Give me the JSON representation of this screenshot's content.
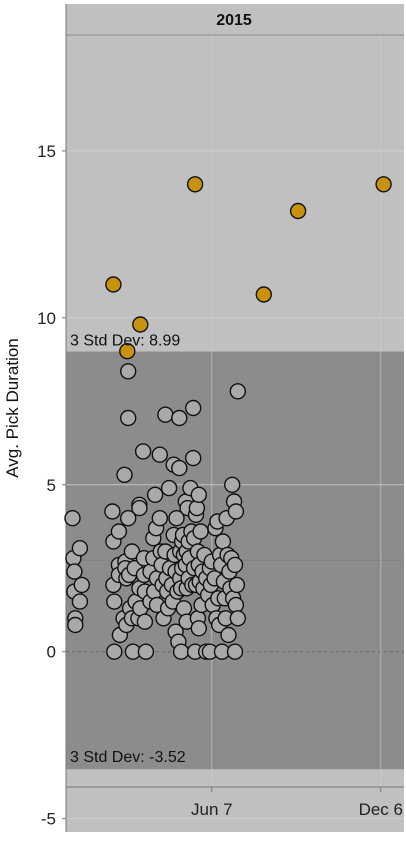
{
  "chart_data": {
    "type": "scatter",
    "title": "2015",
    "ylabel": "Avg. Pick Duration",
    "xlabel": "",
    "ylim": [
      -5.4,
      19.4
    ],
    "xlim": [
      "2015-01-01",
      "2015-12-31"
    ],
    "yticks": [
      -5,
      0,
      5,
      10,
      15
    ],
    "xticks": [
      {
        "date": "2015-06-07",
        "label": "Jun 7"
      },
      {
        "date": "2015-12-06",
        "label": "Dec 6"
      }
    ],
    "grid": true,
    "mean": 2.74,
    "band": {
      "upper": 8.99,
      "lower": -3.52,
      "upper_label": "3 Std Dev: 8.99",
      "lower_label": "3 Std Dev: -3.52"
    },
    "colors": {
      "background": "#c0c0c0",
      "band": "#8c8c8c",
      "normal_point": "#a9a9a9",
      "outlier_point": "#c8920e",
      "point_outline": "#111111",
      "zero_line": "#666666"
    },
    "series": [
      {
        "category": "outlier",
        "points": [
          {
            "x": "2015-02-21",
            "y": 11.0
          },
          {
            "x": "2015-03-08",
            "y": 9.0
          },
          {
            "x": "2015-03-22",
            "y": 9.8
          },
          {
            "x": "2015-05-20",
            "y": 14.0
          },
          {
            "x": "2015-08-02",
            "y": 10.7
          },
          {
            "x": "2015-09-08",
            "y": 13.2
          },
          {
            "x": "2015-12-09",
            "y": 14.0
          }
        ]
      },
      {
        "category": "normal",
        "points": [
          {
            "x": "2015-01-08",
            "y": 4.0
          },
          {
            "x": "2015-01-09",
            "y": 2.8
          },
          {
            "x": "2015-01-10",
            "y": 2.4
          },
          {
            "x": "2015-01-10",
            "y": 1.8
          },
          {
            "x": "2015-01-11",
            "y": 1.0
          },
          {
            "x": "2015-01-11",
            "y": 0.8
          },
          {
            "x": "2015-01-16",
            "y": 3.1
          },
          {
            "x": "2015-01-16",
            "y": 1.5
          },
          {
            "x": "2015-01-18",
            "y": 2.0
          },
          {
            "x": "2015-02-20",
            "y": 4.2
          },
          {
            "x": "2015-02-21",
            "y": 3.3
          },
          {
            "x": "2015-02-21",
            "y": 2.0
          },
          {
            "x": "2015-02-22",
            "y": 1.5
          },
          {
            "x": "2015-02-22",
            "y": 0.0
          },
          {
            "x": "2015-02-27",
            "y": 3.6
          },
          {
            "x": "2015-02-27",
            "y": 2.6
          },
          {
            "x": "2015-02-27",
            "y": 2.3
          },
          {
            "x": "2015-02-28",
            "y": 0.5
          },
          {
            "x": "2015-03-04",
            "y": 1.0
          },
          {
            "x": "2015-03-05",
            "y": 5.3
          },
          {
            "x": "2015-03-06",
            "y": 2.7
          },
          {
            "x": "2015-03-06",
            "y": 2.5
          },
          {
            "x": "2015-03-07",
            "y": 2.2
          },
          {
            "x": "2015-03-07",
            "y": 0.8
          },
          {
            "x": "2015-03-09",
            "y": 8.4
          },
          {
            "x": "2015-03-09",
            "y": 7.0
          },
          {
            "x": "2015-03-09",
            "y": 4.0
          },
          {
            "x": "2015-03-10",
            "y": 2.3
          },
          {
            "x": "2015-03-11",
            "y": 1.3
          },
          {
            "x": "2015-03-13",
            "y": 3.0
          },
          {
            "x": "2015-03-13",
            "y": 1.0
          },
          {
            "x": "2015-03-14",
            "y": 0.0
          },
          {
            "x": "2015-03-16",
            "y": 2.5
          },
          {
            "x": "2015-03-17",
            "y": 1.5
          },
          {
            "x": "2015-03-20",
            "y": 1.0
          },
          {
            "x": "2015-03-21",
            "y": 4.4
          },
          {
            "x": "2015-03-21",
            "y": 4.3
          },
          {
            "x": "2015-03-21",
            "y": 1.9
          },
          {
            "x": "2015-03-22",
            "y": 1.3
          },
          {
            "x": "2015-03-25",
            "y": 6.0
          },
          {
            "x": "2015-03-26",
            "y": 2.8
          },
          {
            "x": "2015-03-26",
            "y": 2.3
          },
          {
            "x": "2015-03-27",
            "y": 1.8
          },
          {
            "x": "2015-03-27",
            "y": 0.9
          },
          {
            "x": "2015-03-28",
            "y": 0.0
          },
          {
            "x": "2015-04-02",
            "y": 2.4
          },
          {
            "x": "2015-04-02",
            "y": 1.5
          },
          {
            "x": "2015-04-05",
            "y": 3.4
          },
          {
            "x": "2015-04-05",
            "y": 2.8
          },
          {
            "x": "2015-04-06",
            "y": 1.8
          },
          {
            "x": "2015-04-07",
            "y": 4.7
          },
          {
            "x": "2015-04-08",
            "y": 3.7
          },
          {
            "x": "2015-04-09",
            "y": 2.2
          },
          {
            "x": "2015-04-09",
            "y": 1.4
          },
          {
            "x": "2015-04-12",
            "y": 5.9
          },
          {
            "x": "2015-04-12",
            "y": 4.0
          },
          {
            "x": "2015-04-13",
            "y": 3.0
          },
          {
            "x": "2015-04-14",
            "y": 2.6
          },
          {
            "x": "2015-04-15",
            "y": 2.0
          },
          {
            "x": "2015-04-16",
            "y": 1.0
          },
          {
            "x": "2015-04-18",
            "y": 7.1
          },
          {
            "x": "2015-04-18",
            "y": 3.0
          },
          {
            "x": "2015-04-19",
            "y": 2.2
          },
          {
            "x": "2015-04-20",
            "y": 1.8
          },
          {
            "x": "2015-04-21",
            "y": 1.3
          },
          {
            "x": "2015-04-22",
            "y": 4.9
          },
          {
            "x": "2015-04-23",
            "y": 2.5
          },
          {
            "x": "2015-04-25",
            "y": 2.0
          },
          {
            "x": "2015-04-26",
            "y": 1.5
          },
          {
            "x": "2015-04-27",
            "y": 5.6
          },
          {
            "x": "2015-04-27",
            "y": 3.5
          },
          {
            "x": "2015-04-28",
            "y": 2.9
          },
          {
            "x": "2015-04-29",
            "y": 2.4
          },
          {
            "x": "2015-04-29",
            "y": 0.6
          },
          {
            "x": "2015-04-30",
            "y": 4.0
          },
          {
            "x": "2015-05-01",
            "y": 1.8
          },
          {
            "x": "2015-05-02",
            "y": 0.3
          },
          {
            "x": "2015-05-03",
            "y": 7.0
          },
          {
            "x": "2015-05-03",
            "y": 5.5
          },
          {
            "x": "2015-05-04",
            "y": 3.0
          },
          {
            "x": "2015-05-04",
            "y": 2.2
          },
          {
            "x": "2015-05-05",
            "y": 1.9
          },
          {
            "x": "2015-05-05",
            "y": 0.0
          },
          {
            "x": "2015-05-06",
            "y": 3.3
          },
          {
            "x": "2015-05-06",
            "y": 2.5
          },
          {
            "x": "2015-05-07",
            "y": 3.5
          },
          {
            "x": "2015-05-08",
            "y": 2.9
          },
          {
            "x": "2015-05-08",
            "y": 1.3
          },
          {
            "x": "2015-05-10",
            "y": 4.5
          },
          {
            "x": "2015-05-10",
            "y": 2.6
          },
          {
            "x": "2015-05-11",
            "y": 3.0
          },
          {
            "x": "2015-05-11",
            "y": 1.9
          },
          {
            "x": "2015-05-11",
            "y": 0.9
          },
          {
            "x": "2015-05-12",
            "y": 4.3
          },
          {
            "x": "2015-05-13",
            "y": 3.3
          },
          {
            "x": "2015-05-13",
            "y": 2.2
          },
          {
            "x": "2015-05-14",
            "y": 2.8
          },
          {
            "x": "2015-05-15",
            "y": 4.9
          },
          {
            "x": "2015-05-16",
            "y": 3.6
          },
          {
            "x": "2015-05-17",
            "y": 2.0
          },
          {
            "x": "2015-05-18",
            "y": 7.3
          },
          {
            "x": "2015-05-18",
            "y": 5.8
          },
          {
            "x": "2015-05-19",
            "y": 3.4
          },
          {
            "x": "2015-05-19",
            "y": 2.5
          },
          {
            "x": "2015-05-20",
            "y": 0.0
          },
          {
            "x": "2015-05-21",
            "y": 4.1
          },
          {
            "x": "2015-05-21",
            "y": 2.0
          },
          {
            "x": "2015-05-22",
            "y": 4.3
          },
          {
            "x": "2015-05-23",
            "y": 3.0
          },
          {
            "x": "2015-05-23",
            "y": 1.0
          },
          {
            "x": "2015-05-24",
            "y": 4.7
          },
          {
            "x": "2015-05-24",
            "y": 2.6
          },
          {
            "x": "2015-05-24",
            "y": 0.7
          },
          {
            "x": "2015-05-25",
            "y": 2.1
          },
          {
            "x": "2015-05-26",
            "y": 3.6
          },
          {
            "x": "2015-05-27",
            "y": 1.4
          },
          {
            "x": "2015-05-28",
            "y": 2.4
          },
          {
            "x": "2015-05-29",
            "y": 1.9
          },
          {
            "x": "2015-05-30",
            "y": 2.9
          },
          {
            "x": "2015-06-01",
            "y": 0.0
          },
          {
            "x": "2015-06-01",
            "y": 2.2
          },
          {
            "x": "2015-06-03",
            "y": 1.7
          },
          {
            "x": "2015-06-05",
            "y": 2.5
          },
          {
            "x": "2015-06-05",
            "y": 0.0
          },
          {
            "x": "2015-06-06",
            "y": 2.0
          },
          {
            "x": "2015-06-07",
            "y": 2.7
          },
          {
            "x": "2015-06-08",
            "y": 1.4
          },
          {
            "x": "2015-06-10",
            "y": 2.2
          },
          {
            "x": "2015-06-11",
            "y": 3.7
          },
          {
            "x": "2015-06-12",
            "y": 1.0
          },
          {
            "x": "2015-06-13",
            "y": 3.9
          },
          {
            "x": "2015-06-14",
            "y": 1.6
          },
          {
            "x": "2015-06-15",
            "y": 0.8
          },
          {
            "x": "2015-06-16",
            "y": 2.9
          },
          {
            "x": "2015-06-17",
            "y": 2.6
          },
          {
            "x": "2015-06-18",
            "y": 0.0
          },
          {
            "x": "2015-06-19",
            "y": 3.3
          },
          {
            "x": "2015-06-20",
            "y": 2.1
          },
          {
            "x": "2015-06-21",
            "y": 1.6
          },
          {
            "x": "2015-06-22",
            "y": 1.0
          },
          {
            "x": "2015-06-23",
            "y": 4.0
          },
          {
            "x": "2015-06-24",
            "y": 2.9
          },
          {
            "x": "2015-06-25",
            "y": 0.5
          },
          {
            "x": "2015-06-26",
            "y": 2.4
          },
          {
            "x": "2015-06-27",
            "y": 1.9
          },
          {
            "x": "2015-06-28",
            "y": 2.8
          },
          {
            "x": "2015-06-29",
            "y": 5.0
          },
          {
            "x": "2015-06-30",
            "y": 1.6
          },
          {
            "x": "2015-07-01",
            "y": 4.5
          },
          {
            "x": "2015-07-02",
            "y": 2.6
          },
          {
            "x": "2015-07-02",
            "y": 0.0
          },
          {
            "x": "2015-07-03",
            "y": 4.2
          },
          {
            "x": "2015-07-03",
            "y": 1.4
          },
          {
            "x": "2015-07-04",
            "y": 2.0
          },
          {
            "x": "2015-07-05",
            "y": 7.8
          },
          {
            "x": "2015-07-05",
            "y": 1.0
          }
        ]
      }
    ]
  }
}
